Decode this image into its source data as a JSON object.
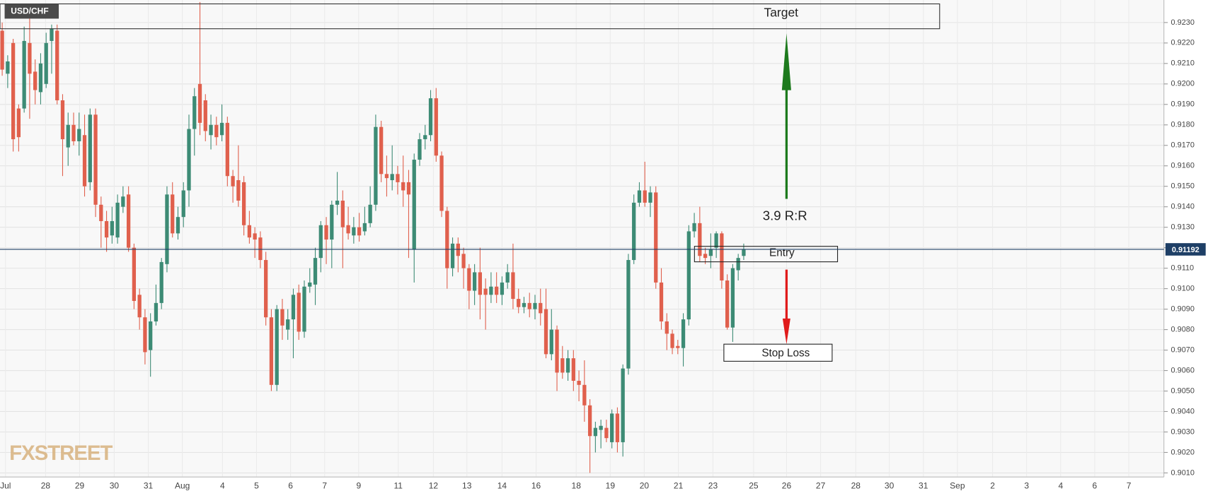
{
  "chart_data": {
    "type": "candlestick",
    "title": "USD/CHF",
    "watermark": "FXSTREET",
    "up_color": "#3d8b75",
    "down_color": "#e0604d",
    "grid": true,
    "last_price": 0.91192,
    "last_price_color": "#1e3f66",
    "annotations": {
      "target": "Target",
      "risk_reward": "3.9 R:R",
      "entry": "Entry",
      "stop_loss": "Stop Loss"
    },
    "xlim": [
      -0.4,
      211.5
    ],
    "ylim": [
      0.9008,
      0.9241
    ],
    "yticks": [
      {
        "value": 0.901,
        "label": "0.9010"
      },
      {
        "value": 0.902,
        "label": "0.9020"
      },
      {
        "value": 0.903,
        "label": "0.9030"
      },
      {
        "value": 0.904,
        "label": "0.9040"
      },
      {
        "value": 0.905,
        "label": "0.9050"
      },
      {
        "value": 0.906,
        "label": "0.9060"
      },
      {
        "value": 0.907,
        "label": "0.9070"
      },
      {
        "value": 0.908,
        "label": "0.9080"
      },
      {
        "value": 0.909,
        "label": "0.9090"
      },
      {
        "value": 0.91,
        "label": "0.9100"
      },
      {
        "value": 0.911,
        "label": "0.9110"
      },
      {
        "value": 0.912,
        "label": "0.9120"
      },
      {
        "value": 0.913,
        "label": "0.9130"
      },
      {
        "value": 0.914,
        "label": "0.9140"
      },
      {
        "value": 0.915,
        "label": "0.9150"
      },
      {
        "value": 0.916,
        "label": "0.9160"
      },
      {
        "value": 0.917,
        "label": "0.9170"
      },
      {
        "value": 0.918,
        "label": "0.9180"
      },
      {
        "value": 0.919,
        "label": "0.9190"
      },
      {
        "value": 0.92,
        "label": "0.9200"
      },
      {
        "value": 0.921,
        "label": "0.9210"
      },
      {
        "value": 0.922,
        "label": "0.9220"
      },
      {
        "value": 0.923,
        "label": "0.9230"
      }
    ],
    "xticks": [
      {
        "value": 0.6,
        "label": "Jul"
      },
      {
        "value": 7.9,
        "label": "28"
      },
      {
        "value": 14.1,
        "label": "29"
      },
      {
        "value": 20.4,
        "label": "30"
      },
      {
        "value": 26.6,
        "label": "31"
      },
      {
        "value": 32.8,
        "label": "Aug"
      },
      {
        "value": 40.1,
        "label": "4"
      },
      {
        "value": 46.3,
        "label": "5"
      },
      {
        "value": 52.5,
        "label": "6"
      },
      {
        "value": 58.7,
        "label": "7"
      },
      {
        "value": 64.9,
        "label": "9"
      },
      {
        "value": 72.1,
        "label": "11"
      },
      {
        "value": 78.5,
        "label": "12"
      },
      {
        "value": 84.6,
        "label": "13"
      },
      {
        "value": 91,
        "label": "14"
      },
      {
        "value": 97.2,
        "label": "16"
      },
      {
        "value": 104.5,
        "label": "18"
      },
      {
        "value": 110.7,
        "label": "19"
      },
      {
        "value": 116.9,
        "label": "20"
      },
      {
        "value": 123.1,
        "label": "21"
      },
      {
        "value": 129.4,
        "label": "23"
      },
      {
        "value": 136.8,
        "label": "25"
      },
      {
        "value": 142.8,
        "label": "26"
      },
      {
        "value": 149,
        "label": "27"
      },
      {
        "value": 155.4,
        "label": "28"
      },
      {
        "value": 161.5,
        "label": "30"
      },
      {
        "value": 167.7,
        "label": "31"
      },
      {
        "value": 173.9,
        "label": "Sep"
      },
      {
        "value": 180.3,
        "label": "2"
      },
      {
        "value": 186.5,
        "label": "3"
      },
      {
        "value": 192.7,
        "label": "4"
      },
      {
        "value": 198.9,
        "label": "6"
      },
      {
        "value": 205.1,
        "label": "7"
      }
    ],
    "open": [
      0.9226,
      0.9205,
      0.922,
      0.9188,
      0.9188,
      0.922,
      0.9206,
      0.9196,
      0.92,
      0.9221,
      0.9226,
      0.9192,
      0.9169,
      0.918,
      0.9172,
      0.9175,
      0.9152,
      0.9185,
      0.9141,
      0.9133,
      0.9126,
      0.9125,
      0.914,
      0.9146,
      0.912,
      0.9097,
      0.9086,
      0.907,
      0.9084,
      0.9093,
      0.9112,
      0.9146,
      0.9127,
      0.9135,
      0.9148,
      0.9178,
      0.92,
      0.9192,
      0.9175,
      0.918,
      0.9175,
      0.9181,
      0.9155,
      0.9153,
      0.9152,
      0.9131,
      0.9127,
      0.9125,
      0.9114,
      0.9086,
      0.9053,
      0.909,
      0.908,
      0.9085,
      0.9098,
      0.9079,
      0.9101,
      0.9102,
      0.9115,
      0.9131,
      0.9124,
      0.9141,
      0.9143,
      0.9131,
      0.9126,
      0.913,
      0.9128,
      0.9132,
      0.9141,
      0.9179,
      0.9156,
      0.9153,
      0.9156,
      0.9152,
      0.9152,
      0.9119,
      0.9163,
      0.9173,
      0.9175,
      0.9193,
      0.9165,
      0.9138,
      0.911,
      0.9122,
      0.9117,
      0.911,
      0.9099,
      0.9108,
      0.91,
      0.9097,
      0.9101,
      0.9097,
      0.9103,
      0.9108,
      0.9095,
      0.9091,
      0.9093,
      0.909,
      0.9093,
      0.909,
      0.9068,
      0.908,
      0.9066,
      0.9059,
      0.9066,
      0.9055,
      0.9053,
      0.9043,
      0.9028,
      0.9031,
      0.9032,
      0.9025,
      0.9039,
      0.9025,
      0.9061,
      0.9114,
      0.9142,
      0.9148,
      0.9142,
      0.9147,
      0.9103,
      0.9084,
      0.9078,
      0.9072,
      0.9071,
      0.9085,
      0.9128,
      0.9132,
      0.9117,
      0.9116,
      0.912,
      0.9127,
      0.9104,
      0.9081,
      0.9109,
      0.9116
    ],
    "high": [
      0.923,
      0.9214,
      0.9222,
      0.919,
      0.9228,
      0.9232,
      0.9212,
      0.9215,
      0.9225,
      0.9229,
      0.9229,
      0.9195,
      0.9186,
      0.9186,
      0.9186,
      0.9185,
      0.9188,
      0.9188,
      0.9145,
      0.9138,
      0.914,
      0.9146,
      0.915,
      0.915,
      0.9122,
      0.91,
      0.909,
      0.9088,
      0.9102,
      0.9115,
      0.915,
      0.9152,
      0.914,
      0.9152,
      0.9185,
      0.9198,
      0.924,
      0.9195,
      0.9185,
      0.9184,
      0.919,
      0.9184,
      0.9158,
      0.917,
      0.9155,
      0.9138,
      0.913,
      0.9128,
      0.9118,
      0.909,
      0.9092,
      0.9095,
      0.909,
      0.91,
      0.9102,
      0.9104,
      0.911,
      0.912,
      0.9133,
      0.9135,
      0.9143,
      0.9157,
      0.9148,
      0.914,
      0.9135,
      0.9137,
      0.914,
      0.915,
      0.9185,
      0.9182,
      0.9165,
      0.917,
      0.916,
      0.9165,
      0.9158,
      0.9166,
      0.9176,
      0.918,
      0.9197,
      0.9198,
      0.9167,
      0.914,
      0.9125,
      0.9125,
      0.912,
      0.9112,
      0.9112,
      0.912,
      0.9105,
      0.9108,
      0.9108,
      0.9106,
      0.9112,
      0.9122,
      0.91,
      0.9096,
      0.9098,
      0.9097,
      0.91,
      0.91,
      0.909,
      0.9082,
      0.9072,
      0.907,
      0.907,
      0.906,
      0.9065,
      0.9046,
      0.9035,
      0.9036,
      0.9036,
      0.9041,
      0.9042,
      0.9063,
      0.9117,
      0.9146,
      0.9152,
      0.9162,
      0.915,
      0.915,
      0.911,
      0.9088,
      0.908,
      0.9075,
      0.9088,
      0.9131,
      0.9137,
      0.914,
      0.912,
      0.9127,
      0.9128,
      0.9128,
      0.9107,
      0.9112,
      0.9117,
      0.9122
    ],
    "low": [
      0.9204,
      0.9198,
      0.9167,
      0.9167,
      0.9186,
      0.9183,
      0.919,
      0.919,
      0.9198,
      0.9205,
      0.919,
      0.9155,
      0.916,
      0.917,
      0.9165,
      0.9145,
      0.9148,
      0.9135,
      0.912,
      0.9118,
      0.9122,
      0.9122,
      0.9137,
      0.9118,
      0.909,
      0.908,
      0.9063,
      0.9057,
      0.9082,
      0.909,
      0.9108,
      0.9125,
      0.9124,
      0.913,
      0.914,
      0.9165,
      0.9175,
      0.9172,
      0.9168,
      0.917,
      0.9172,
      0.915,
      0.9142,
      0.914,
      0.9126,
      0.9122,
      0.9115,
      0.911,
      0.9082,
      0.905,
      0.905,
      0.9075,
      0.9075,
      0.9066,
      0.9075,
      0.9076,
      0.9098,
      0.9092,
      0.9108,
      0.9112,
      0.911,
      0.9136,
      0.911,
      0.9124,
      0.9122,
      0.9123,
      0.9126,
      0.913,
      0.9138,
      0.9152,
      0.9145,
      0.9148,
      0.9146,
      0.914,
      0.9115,
      0.9103,
      0.916,
      0.9168,
      0.9172,
      0.9162,
      0.9135,
      0.91,
      0.9106,
      0.9108,
      0.91,
      0.909,
      0.9092,
      0.9085,
      0.908,
      0.9093,
      0.9093,
      0.9092,
      0.91,
      0.909,
      0.9088,
      0.9088,
      0.9086,
      0.9085,
      0.9082,
      0.9066,
      0.9065,
      0.905,
      0.9056,
      0.9055,
      0.905,
      0.9045,
      0.9035,
      0.901,
      0.902,
      0.9022,
      0.9025,
      0.9022,
      0.902,
      0.9018,
      0.9058,
      0.9112,
      0.914,
      0.914,
      0.9135,
      0.91,
      0.908,
      0.907,
      0.9068,
      0.9068,
      0.9062,
      0.9082,
      0.9125,
      0.9113,
      0.9112,
      0.911,
      0.9115,
      0.91,
      0.908,
      0.9074,
      0.9104,
      0.9114
    ],
    "close": [
      0.9207,
      0.9211,
      0.9173,
      0.9174,
      0.9221,
      0.9205,
      0.9197,
      0.921,
      0.922,
      0.9227,
      0.9192,
      0.9173,
      0.918,
      0.9172,
      0.9178,
      0.915,
      0.9185,
      0.9141,
      0.9133,
      0.9125,
      0.9133,
      0.9142,
      0.9145,
      0.912,
      0.9094,
      0.9086,
      0.9069,
      0.9084,
      0.9093,
      0.9113,
      0.9146,
      0.9127,
      0.9135,
      0.9148,
      0.9178,
      0.9194,
      0.9181,
      0.9177,
      0.918,
      0.9174,
      0.9181,
      0.9155,
      0.915,
      0.9143,
      0.9131,
      0.9125,
      0.9124,
      0.9114,
      0.9086,
      0.9053,
      0.909,
      0.9082,
      0.9085,
      0.9097,
      0.9079,
      0.9101,
      0.9103,
      0.9115,
      0.9131,
      0.9124,
      0.9141,
      0.9143,
      0.913,
      0.9127,
      0.913,
      0.9126,
      0.9132,
      0.9141,
      0.9179,
      0.9156,
      0.9154,
      0.9156,
      0.9152,
      0.9148,
      0.9146,
      0.9163,
      0.9173,
      0.9175,
      0.9193,
      0.9165,
      0.9138,
      0.911,
      0.9122,
      0.9116,
      0.911,
      0.9099,
      0.9108,
      0.9097,
      0.9097,
      0.9101,
      0.9097,
      0.9103,
      0.9108,
      0.9095,
      0.9091,
      0.9093,
      0.909,
      0.9093,
      0.9088,
      0.9068,
      0.908,
      0.9059,
      0.9059,
      0.9066,
      0.9055,
      0.9053,
      0.9043,
      0.9028,
      0.9032,
      0.9033,
      0.9027,
      0.9039,
      0.9025,
      0.9061,
      0.9114,
      0.9142,
      0.9148,
      0.9142,
      0.9147,
      0.9103,
      0.9084,
      0.9078,
      0.9071,
      0.9071,
      0.9085,
      0.9128,
      0.9132,
      0.9116,
      0.9115,
      0.9119,
      0.9127,
      0.9104,
      0.9081,
      0.911,
      0.9115,
      0.9119
    ]
  }
}
